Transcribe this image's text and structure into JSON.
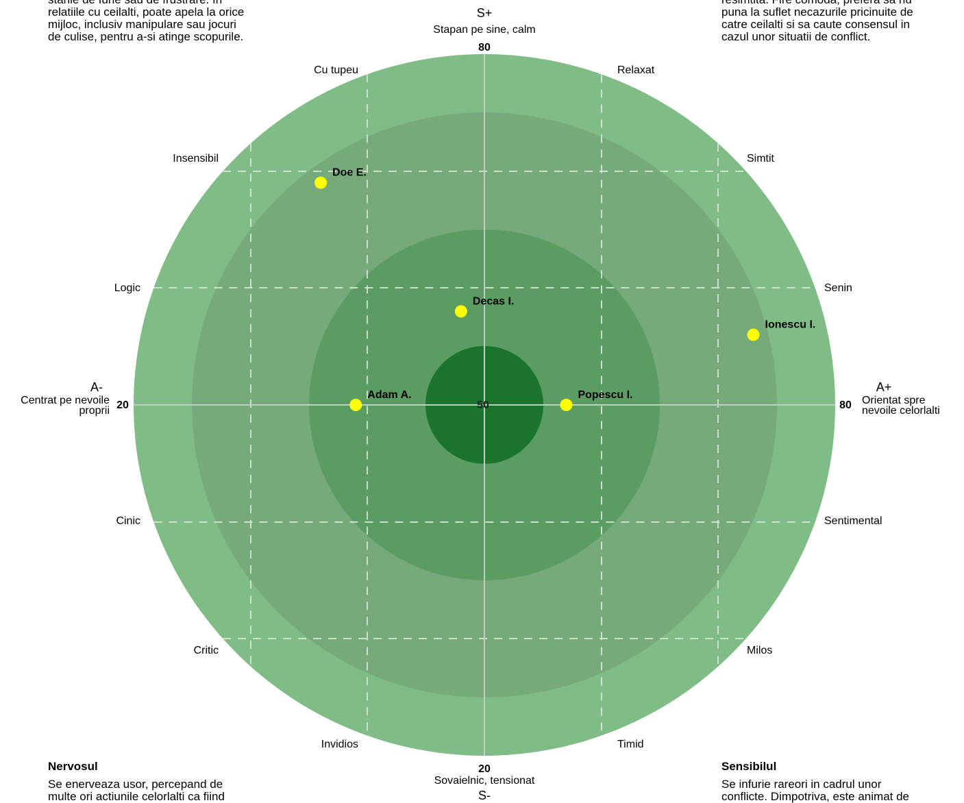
{
  "chart_data": {
    "type": "scatter",
    "title": "",
    "xlim": [
      20,
      80
    ],
    "ylim": [
      20,
      80
    ],
    "grid": true,
    "x_axis": {
      "pole_minus": "A-",
      "pole_minus_desc": [
        "Centrat pe nevoile",
        "proprii"
      ],
      "pole_plus": "A+",
      "pole_plus_desc": [
        "Orientat spre",
        "nevoile celorlalti"
      ],
      "min_label": "20",
      "max_label": "80"
    },
    "y_axis": {
      "pole_plus": "S+",
      "pole_plus_desc": "Stapan pe sine, calm",
      "pole_minus": "S-",
      "pole_minus_desc": "Sovaielnic, tensionat",
      "min_label": "20",
      "max_label": "80"
    },
    "center_label": "50",
    "rim_labels": [
      "Cu tupeu",
      "Relaxat",
      "Insensibil",
      "Simtit",
      "Logic",
      "Senin",
      "Cinic",
      "Sentimental",
      "Critic",
      "Milos",
      "Invidios",
      "Timid"
    ],
    "points": [
      {
        "name": "Doe E.",
        "x": 36,
        "y": 69
      },
      {
        "name": "Decas I.",
        "x": 48,
        "y": 58
      },
      {
        "name": "Adam A.",
        "x": 39,
        "y": 50
      },
      {
        "name": "Popescu I.",
        "x": 57,
        "y": 50
      },
      {
        "name": "Ionescu I.",
        "x": 73,
        "y": 56
      }
    ],
    "colors": {
      "ring_outer": "#80bc86",
      "ring_2": "#77aa7b",
      "ring_3": "#5a9c62",
      "ring_inner": "#1b742b",
      "point": "#ffff00"
    }
  },
  "texts": {
    "top_left": {
      "lines": [
        "starile de furie sau de frustrare. In",
        "relatiile cu ceilalti, poate apela la orice",
        "mijloc, inclusiv manipulare sau jocuri",
        "de culise, pentru a-si atinge scopurile."
      ]
    },
    "top_right": {
      "lines": [
        "resimtita. Fire comoda, prefera sa nu",
        "puna la suflet necazurile pricinuite de",
        "catre ceilalti si sa caute consensul in",
        "cazul unor situatii de conflict."
      ]
    },
    "bottom_left": {
      "title": "Nervosul",
      "lines": [
        "Se enerveaza usor, percepand de",
        "multe ori actiunile celorlalti ca fiind"
      ]
    },
    "bottom_right": {
      "title": "Sensibilul",
      "lines": [
        "Se infurie rareori in cadrul unor",
        "conflicte. Dimpotriva, este animat de"
      ]
    }
  }
}
